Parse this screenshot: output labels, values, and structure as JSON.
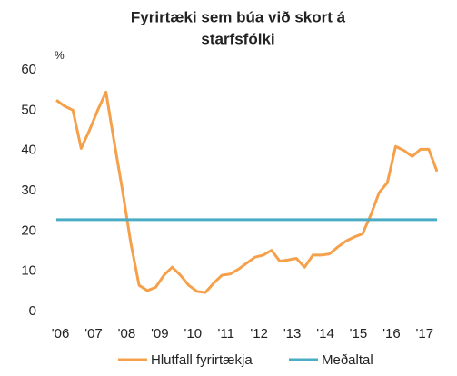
{
  "chart_data": {
    "type": "line",
    "title": [
      "Fyrirtæki sem búa við skort á",
      "starfsfólki"
    ],
    "y_label": "%",
    "categories": [
      null,
      "'06",
      null,
      null,
      null,
      "'07",
      null,
      null,
      null,
      "'08",
      null,
      null,
      null,
      "'09",
      null,
      null,
      null,
      "'10",
      null,
      null,
      null,
      "'11",
      null,
      null,
      null,
      "'12",
      null,
      null,
      null,
      "'13",
      null,
      null,
      null,
      "'14",
      null,
      null,
      null,
      "'15",
      null,
      null,
      null,
      "'16",
      null,
      null,
      null,
      "'17",
      null
    ],
    "series": [
      {
        "name": "Hlutfall fyrirtækja",
        "color": "#f5a04a",
        "values": [
          52.5,
          51,
          50,
          40.5,
          45,
          50,
          54.5,
          42,
          30,
          17,
          6.5,
          5.2,
          6,
          9,
          11,
          9,
          6.5,
          5,
          4.7,
          7,
          9,
          9.3,
          10.5,
          12,
          13.5,
          14,
          15.2,
          12.5,
          12.8,
          13.2,
          11,
          14,
          14,
          14.3,
          16,
          17.5,
          18.5,
          19.3,
          24,
          29.5,
          32,
          41,
          40,
          38.5,
          40.3,
          40.3,
          34.8
        ]
      },
      {
        "name": "Meðaltal",
        "color": "#4aacc5",
        "values": [
          22.8,
          22.8,
          22.8,
          22.8,
          22.8,
          22.8,
          22.8,
          22.8,
          22.8,
          22.8,
          22.8,
          22.8,
          22.8,
          22.8,
          22.8,
          22.8,
          22.8,
          22.8,
          22.8,
          22.8,
          22.8,
          22.8,
          22.8,
          22.8,
          22.8,
          22.8,
          22.8,
          22.8,
          22.8,
          22.8,
          22.8,
          22.8,
          22.8,
          22.8,
          22.8,
          22.8,
          22.8,
          22.8,
          22.8,
          22.8,
          22.8,
          22.8,
          22.8,
          22.8,
          22.8,
          22.8,
          22.8
        ]
      }
    ],
    "ylim": [
      0,
      60
    ],
    "yticks": [
      0,
      10,
      20,
      30,
      40,
      50,
      60
    ],
    "grid": false,
    "legend": "bottom"
  }
}
